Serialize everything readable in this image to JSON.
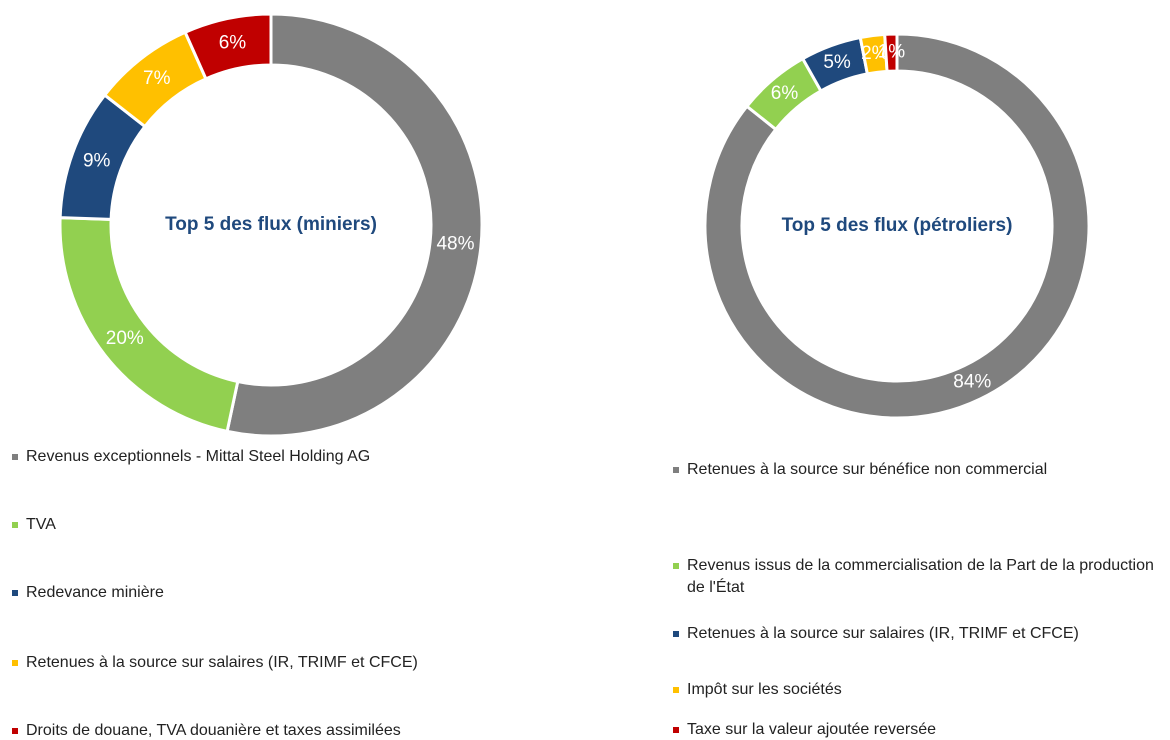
{
  "chart_data": [
    {
      "type": "donut",
      "title": "Top 5 des flux (miniers)",
      "categories": [
        "Revenus exceptionnels - Mittal Steel Holding AG",
        "TVA",
        "Redevance minière",
        "Retenues à la source sur salaires (IR, TRIMF et CFCE)",
        "Droits de douane, TVA douanière et taxes assimilées"
      ],
      "values": [
        48,
        20,
        9,
        7,
        6
      ],
      "value_labels": [
        "48%",
        "20%",
        "9%",
        "7%",
        "6%"
      ],
      "colors": [
        "#7f7f7f",
        "#92d050",
        "#1f497d",
        "#ffc000",
        "#c00000"
      ]
    },
    {
      "type": "donut",
      "title": "Top 5 des flux (pétroliers)",
      "categories": [
        "Retenues à la source sur bénéfice non commercial",
        "Revenus issus de la commercialisation de la Part de la production de l'État",
        "Retenues à la source sur salaires (IR, TRIMF et CFCE)",
        "Impôt sur les sociétés",
        "Taxe sur la valeur ajoutée reversée"
      ],
      "values": [
        84,
        6,
        5,
        2,
        1
      ],
      "value_labels": [
        "84%",
        "6%",
        "5%",
        "2%",
        "1%"
      ],
      "colors": [
        "#7f7f7f",
        "#92d050",
        "#1f497d",
        "#ffc000",
        "#c00000"
      ]
    }
  ]
}
